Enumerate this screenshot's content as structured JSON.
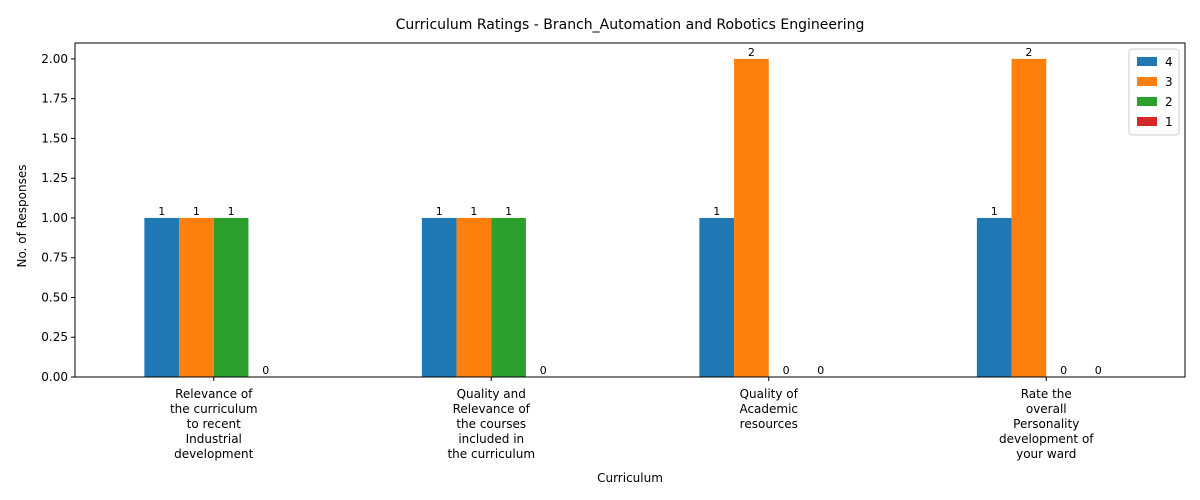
{
  "chart_data": {
    "type": "bar",
    "title": "Curriculum Ratings - Branch_Automation and Robotics Engineering",
    "xlabel": "Curriculum",
    "ylabel": "No. of Responses",
    "ylim": [
      0,
      2.1
    ],
    "yticks": [
      "0.00",
      "0.25",
      "0.50",
      "0.75",
      "1.00",
      "1.25",
      "1.50",
      "1.75",
      "2.00"
    ],
    "categories": [
      [
        "Relevance of",
        "the curriculum",
        "to recent",
        "Industrial",
        "development"
      ],
      [
        "Quality and",
        "Relevance of",
        "the courses",
        "included in",
        "the curriculum"
      ],
      [
        "Quality of",
        "Academic",
        "resources"
      ],
      [
        "Rate the",
        "overall",
        "Personality",
        "development of",
        "your ward"
      ]
    ],
    "series": [
      {
        "name": "4",
        "color": "#1f77b4",
        "values": [
          1,
          1,
          1,
          1
        ]
      },
      {
        "name": "3",
        "color": "#ff7f0e",
        "values": [
          1,
          1,
          2,
          2
        ]
      },
      {
        "name": "2",
        "color": "#2ca02c",
        "values": [
          1,
          1,
          0,
          0
        ]
      },
      {
        "name": "1",
        "color": "#d62728",
        "values": [
          0,
          0,
          0,
          0
        ]
      }
    ],
    "legend_position": "top-right",
    "grid": false
  }
}
